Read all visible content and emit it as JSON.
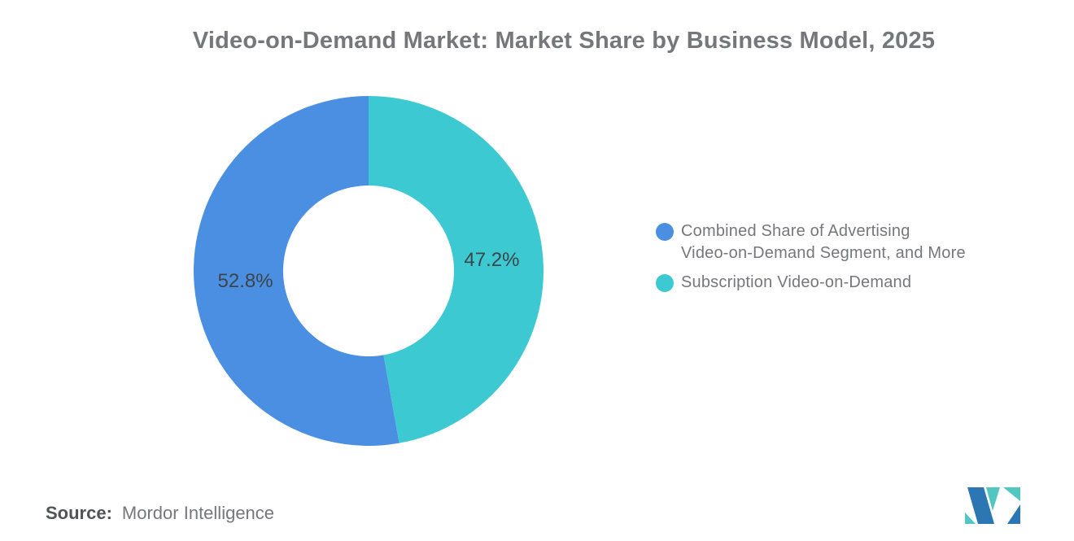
{
  "title": "Video-on-Demand Market: Market Share by Business Model, 2025",
  "chart_data": {
    "type": "pie",
    "subtype": "donut",
    "title": "Video-on-Demand Market: Market Share by Business Model, 2025",
    "unit": "%",
    "inner_radius_ratio": 0.49,
    "legend_position": "right",
    "segments_clockwise_from_top": [
      {
        "name": "Subscription Video-on-Demand",
        "value": 47.2,
        "display_label": "47.2%",
        "color": "#3dc9d2"
      },
      {
        "name": "Combined Share of Advertising Video-on-Demand Segment, and More",
        "value": 52.8,
        "display_label": "52.8%",
        "color": "#4a8fe2"
      }
    ]
  },
  "legend": {
    "items": [
      {
        "lines": [
          "Combined Share of Advertising",
          "Video-on-Demand Segment, and More"
        ],
        "color": "#4a8fe2"
      },
      {
        "lines": [
          "Subscription Video-on-Demand"
        ],
        "color": "#3dc9d2"
      }
    ]
  },
  "source": {
    "label": "Source:",
    "value": "Mordor Intelligence"
  },
  "logo": {
    "name": "Mordor Intelligence logo mark",
    "colors": {
      "blue": "#2c76b4",
      "teal": "#52c6c1"
    }
  }
}
